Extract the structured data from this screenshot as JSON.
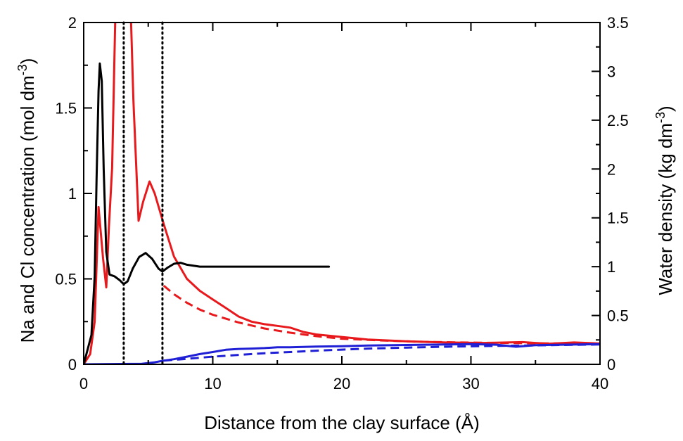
{
  "chart_data": {
    "type": "line",
    "xlabel": "Distance from the clay surface (Å)",
    "ylabel_left": {
      "text": "Na and Cl concentration (mol dm",
      "sup": "-3",
      "tail": ")"
    },
    "ylabel_right": {
      "text": "Water density (kg dm",
      "sup": "-3",
      "tail": ")"
    },
    "xlim": [
      0,
      40
    ],
    "ylim_left": [
      0,
      2
    ],
    "ylim_right": [
      0,
      3.5
    ],
    "x_ticks": [
      0,
      10,
      20,
      30,
      40
    ],
    "x_tick_labels": [
      "0",
      "10",
      "20",
      "30",
      "40"
    ],
    "y_left_ticks": [
      0,
      0.5,
      1,
      1.5,
      2
    ],
    "y_left_tick_labels": [
      "0",
      "0.5",
      "1",
      "1.5",
      "2"
    ],
    "y_right_ticks": [
      0,
      0.5,
      1,
      1.5,
      2,
      2.5,
      3,
      3.5
    ],
    "y_right_tick_labels": [
      "0",
      "0.5",
      "1",
      "1.5",
      "2",
      "2.5",
      "3",
      "3.5"
    ],
    "vlines": [
      3.1,
      6.1
    ],
    "colors": {
      "na": "#e8191c",
      "cl": "#1f1fd6",
      "water": "#000000",
      "vline": "#000000"
    },
    "series": [
      {
        "axis": "left",
        "color": "#e8191c",
        "style": "solid",
        "points": [
          [
            0,
            0
          ],
          [
            0.5,
            0.06
          ],
          [
            0.85,
            0.25
          ],
          [
            1.15,
            0.92
          ],
          [
            1.5,
            0.62
          ],
          [
            1.75,
            0.45
          ],
          [
            1.95,
            0.8
          ],
          [
            2.2,
            1.15
          ],
          [
            2.45,
            2.05
          ],
          [
            3.65,
            2.05
          ],
          [
            3.85,
            1.55
          ],
          [
            4.25,
            0.84
          ],
          [
            4.6,
            0.95
          ],
          [
            5.1,
            1.07
          ],
          [
            5.5,
            1.0
          ],
          [
            6.2,
            0.82
          ],
          [
            7.0,
            0.63
          ],
          [
            8.0,
            0.5
          ],
          [
            9.0,
            0.43
          ],
          [
            10.0,
            0.38
          ],
          [
            11.0,
            0.33
          ],
          [
            12.0,
            0.28
          ],
          [
            13.0,
            0.25
          ],
          [
            14.0,
            0.235
          ],
          [
            15.0,
            0.225
          ],
          [
            16.0,
            0.215
          ],
          [
            17.0,
            0.19
          ],
          [
            18.0,
            0.175
          ],
          [
            20.0,
            0.16
          ],
          [
            22.0,
            0.145
          ],
          [
            25.0,
            0.135
          ],
          [
            28.0,
            0.128
          ],
          [
            31.0,
            0.125
          ],
          [
            34.0,
            0.13
          ],
          [
            36.0,
            0.12
          ],
          [
            38.0,
            0.128
          ],
          [
            40.0,
            0.122
          ]
        ]
      },
      {
        "axis": "left",
        "color": "#e8191c",
        "style": "dashed",
        "points": [
          [
            6.2,
            0.46
          ],
          [
            7.0,
            0.41
          ],
          [
            8.0,
            0.36
          ],
          [
            9.0,
            0.32
          ],
          [
            10.0,
            0.29
          ],
          [
            12.0,
            0.245
          ],
          [
            14.0,
            0.21
          ],
          [
            16.0,
            0.185
          ],
          [
            18.0,
            0.165
          ],
          [
            20.0,
            0.15
          ],
          [
            23.0,
            0.14
          ],
          [
            26.0,
            0.132
          ],
          [
            30.0,
            0.127
          ],
          [
            35.0,
            0.123
          ],
          [
            40.0,
            0.12
          ]
        ]
      },
      {
        "axis": "left",
        "color": "#1f1fd6",
        "style": "solid",
        "points": [
          [
            0,
            0
          ],
          [
            4.5,
            0.003
          ],
          [
            5.5,
            0.012
          ],
          [
            6.2,
            0.022
          ],
          [
            7.0,
            0.03
          ],
          [
            8.0,
            0.045
          ],
          [
            9.0,
            0.06
          ],
          [
            10.0,
            0.072
          ],
          [
            11.0,
            0.085
          ],
          [
            12.0,
            0.09
          ],
          [
            13.0,
            0.092
          ],
          [
            14.0,
            0.095
          ],
          [
            15.0,
            0.1
          ],
          [
            16.0,
            0.1
          ],
          [
            17.0,
            0.102
          ],
          [
            18.0,
            0.104
          ],
          [
            20.0,
            0.106
          ],
          [
            22.0,
            0.11
          ],
          [
            24.0,
            0.112
          ],
          [
            26.0,
            0.114
          ],
          [
            28.0,
            0.116
          ],
          [
            30.0,
            0.118
          ],
          [
            32.0,
            0.115
          ],
          [
            33.5,
            0.103
          ],
          [
            35.0,
            0.112
          ],
          [
            37.0,
            0.115
          ],
          [
            40.0,
            0.118
          ]
        ]
      },
      {
        "axis": "left",
        "color": "#1f1fd6",
        "style": "dashed",
        "points": [
          [
            6.2,
            0.022
          ],
          [
            8.0,
            0.032
          ],
          [
            10.0,
            0.045
          ],
          [
            12.0,
            0.055
          ],
          [
            14.0,
            0.065
          ],
          [
            16.0,
            0.072
          ],
          [
            18.0,
            0.08
          ],
          [
            20.0,
            0.086
          ],
          [
            22.0,
            0.092
          ],
          [
            25.0,
            0.098
          ],
          [
            28.0,
            0.103
          ],
          [
            31.0,
            0.107
          ],
          [
            34.0,
            0.11
          ],
          [
            37.0,
            0.113
          ],
          [
            40.0,
            0.116
          ]
        ]
      },
      {
        "axis": "right",
        "color": "#000000",
        "style": "solid",
        "points": [
          [
            0,
            0
          ],
          [
            0.6,
            0.3
          ],
          [
            0.85,
            0.9
          ],
          [
            1.0,
            1.9
          ],
          [
            1.15,
            2.8
          ],
          [
            1.25,
            3.08
          ],
          [
            1.4,
            2.9
          ],
          [
            1.55,
            2.0
          ],
          [
            1.75,
            1.15
          ],
          [
            2.0,
            0.92
          ],
          [
            2.4,
            0.9
          ],
          [
            2.8,
            0.86
          ],
          [
            3.1,
            0.82
          ],
          [
            3.4,
            0.85
          ],
          [
            3.8,
            0.98
          ],
          [
            4.3,
            1.1
          ],
          [
            4.8,
            1.14
          ],
          [
            5.3,
            1.08
          ],
          [
            5.8,
            0.98
          ],
          [
            6.1,
            0.95
          ],
          [
            6.5,
            0.99
          ],
          [
            7.0,
            1.03
          ],
          [
            7.5,
            1.04
          ],
          [
            8.0,
            1.02
          ],
          [
            9.0,
            1.0
          ],
          [
            10.0,
            1.0
          ],
          [
            12.0,
            1.0
          ],
          [
            14.0,
            1.0
          ],
          [
            16.0,
            1.0
          ],
          [
            18.0,
            1.0
          ],
          [
            19.0,
            1.0
          ]
        ]
      }
    ]
  }
}
